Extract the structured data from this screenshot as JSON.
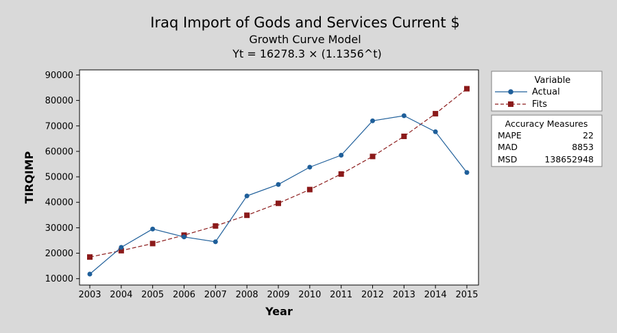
{
  "chart_data": {
    "type": "line",
    "title": "Iraq Import of Gods and Services Current $",
    "subtitle": "Growth Curve Model",
    "equation": "Yt = 16278.3 × (1.1356^t)",
    "xlabel": "Year",
    "ylabel": "TIRQIMP",
    "x": [
      "2003",
      "2004",
      "2005",
      "2006",
      "2007",
      "2008",
      "2009",
      "2010",
      "2011",
      "2012",
      "2013",
      "2014",
      "2015"
    ],
    "yticks": [
      10000,
      20000,
      30000,
      40000,
      50000,
      60000,
      70000,
      80000,
      90000
    ],
    "ytick_labels": [
      "10000",
      "20000",
      "30000",
      "40000",
      "50000",
      "60000",
      "70000",
      "80000",
      "90000"
    ],
    "ylim": [
      7500,
      92000
    ],
    "series": [
      {
        "name": "Actual",
        "color": "#1f5f9a",
        "marker": "circle",
        "line": "solid",
        "values": [
          11800,
          22300,
          29500,
          26400,
          24500,
          42500,
          47000,
          53800,
          58500,
          72000,
          74000,
          67700,
          51700
        ]
      },
      {
        "name": "Fits",
        "color": "#8b1a1a",
        "marker": "square",
        "line": "dashed",
        "values": [
          18500,
          21000,
          23800,
          27100,
          30700,
          34900,
          39600,
          45000,
          51100,
          58000,
          65900,
          74800,
          84600
        ]
      }
    ],
    "legend": {
      "title": "Variable",
      "placement": "right"
    },
    "accuracy": {
      "title": "Accuracy Measures",
      "rows": [
        {
          "label": "MAPE",
          "value": "22"
        },
        {
          "label": "MAD",
          "value": "8853"
        },
        {
          "label": "MSD",
          "value": "138652948"
        }
      ]
    }
  }
}
